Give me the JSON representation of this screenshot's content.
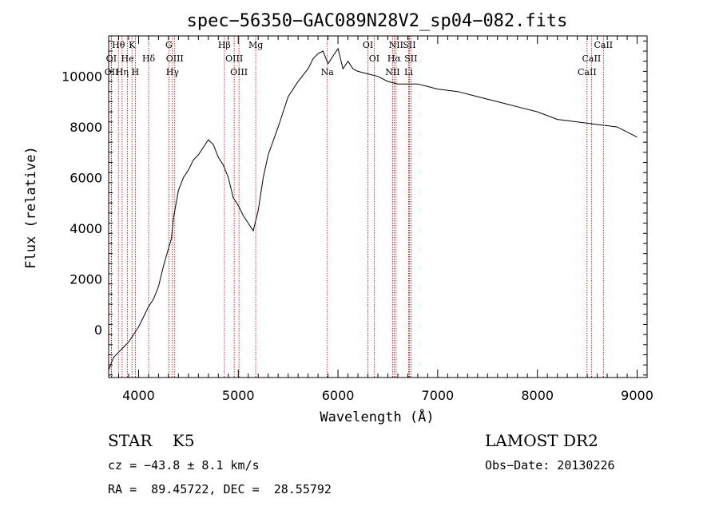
{
  "title": "spec−56350−GAC089N28V2_sp04−082.fits",
  "info": {
    "class_line": "STAR    K5",
    "cz_line": "cz = −43.8 ± 8.1 km/s",
    "radec_line": "RA =  89.45722, DEC =  28.55792",
    "survey": "LAMOST DR2",
    "obs_date": "Obs−Date: 20130226"
  },
  "colors": {
    "spectrum": "#000000",
    "lines": "#c00000",
    "axes": "#000000"
  },
  "chart_data": {
    "type": "line",
    "title": "spec−56350−GAC089N28V2_sp04−082.fits",
    "xlabel": "Wavelength (Å)",
    "ylabel": "Flux (relative)",
    "xlim": [
      3700,
      9100
    ],
    "ylim": [
      -1900,
      11600
    ],
    "xticks": [
      4000,
      5000,
      6000,
      7000,
      8000,
      9000
    ],
    "yticks": [
      0,
      2000,
      4000,
      6000,
      8000,
      10000
    ],
    "grid": false,
    "series": [
      {
        "x": [
          3700,
          3750,
          3800,
          3850,
          3900,
          3950,
          4000,
          4050,
          4100,
          4150,
          4200,
          4250,
          4300,
          4330,
          4350,
          4400,
          4450,
          4500,
          4550,
          4600,
          4650,
          4700,
          4750,
          4800,
          4850,
          4900,
          4950,
          5000,
          5050,
          5100,
          5150,
          5200,
          5250,
          5300,
          5400,
          5500,
          5600,
          5700,
          5750,
          5800,
          5850,
          5900,
          5950,
          6000,
          6050,
          6100,
          6150,
          6200,
          6300,
          6400,
          6500,
          6600,
          6700,
          6800,
          6900,
          7000,
          7200,
          7400,
          7600,
          7700,
          7800,
          8000,
          8200,
          8400,
          8600,
          8800,
          9000
        ],
        "y": [
          -1600,
          -1100,
          -900,
          -700,
          -500,
          -200,
          100,
          500,
          900,
          1200,
          1700,
          2500,
          3200,
          3600,
          4400,
          5500,
          6000,
          6300,
          6700,
          6900,
          7200,
          7500,
          7300,
          6800,
          6500,
          6000,
          5200,
          4900,
          4500,
          4200,
          3900,
          4700,
          6000,
          6900,
          8000,
          9200,
          9800,
          10300,
          10700,
          10900,
          11000,
          10500,
          10800,
          11100,
          10300,
          10600,
          10300,
          10200,
          10100,
          10000,
          9800,
          9700,
          9700,
          9700,
          9600,
          9500,
          9400,
          9200,
          9000,
          8900,
          8800,
          8600,
          8300,
          8200,
          8100,
          8000,
          7600
        ]
      }
    ],
    "spectral_lines": [
      {
        "label": "Hθ",
        "row": 0,
        "wave": 3798
      },
      {
        "label": "K",
        "row": 0,
        "wave": 3934
      },
      {
        "label": "G",
        "row": 0,
        "wave": 4304
      },
      {
        "label": "Hβ",
        "row": 0,
        "wave": 4861
      },
      {
        "label": "Mg",
        "row": 0,
        "wave": 5175
      },
      {
        "label": "OI",
        "row": 0,
        "wave": 6300
      },
      {
        "label": "NII",
        "row": 0,
        "wave": 6583
      },
      {
        "label": "SII",
        "row": 0,
        "wave": 6716
      },
      {
        "label": "CaII",
        "row": 0,
        "wave": 8662
      },
      {
        "label": "OI",
        "row": 1,
        "wave": 3727
      },
      {
        "label": "He",
        "row": 1,
        "wave": 3889
      },
      {
        "label": "Hδ",
        "row": 1,
        "wave": 4101
      },
      {
        "label": "OIII",
        "row": 1,
        "wave": 4363
      },
      {
        "label": "OIII",
        "row": 1,
        "wave": 4959
      },
      {
        "label": "OI",
        "row": 1,
        "wave": 6363
      },
      {
        "label": "Hα",
        "row": 1,
        "wave": 6563
      },
      {
        "label": "SII",
        "row": 1,
        "wave": 6731
      },
      {
        "label": "CaII",
        "row": 1,
        "wave": 8542
      },
      {
        "label": "OII",
        "row": 2,
        "wave": 3729
      },
      {
        "label": "Hη",
        "row": 2,
        "wave": 3835
      },
      {
        "label": "H",
        "row": 2,
        "wave": 3968
      },
      {
        "label": "Hγ",
        "row": 2,
        "wave": 4340
      },
      {
        "label": "OIII",
        "row": 2,
        "wave": 5007
      },
      {
        "label": "Na",
        "row": 2,
        "wave": 5893
      },
      {
        "label": "NII",
        "row": 2,
        "wave": 6548
      },
      {
        "label": "Li",
        "row": 2,
        "wave": 6708
      },
      {
        "label": "CaII",
        "row": 2,
        "wave": 8498
      }
    ]
  }
}
